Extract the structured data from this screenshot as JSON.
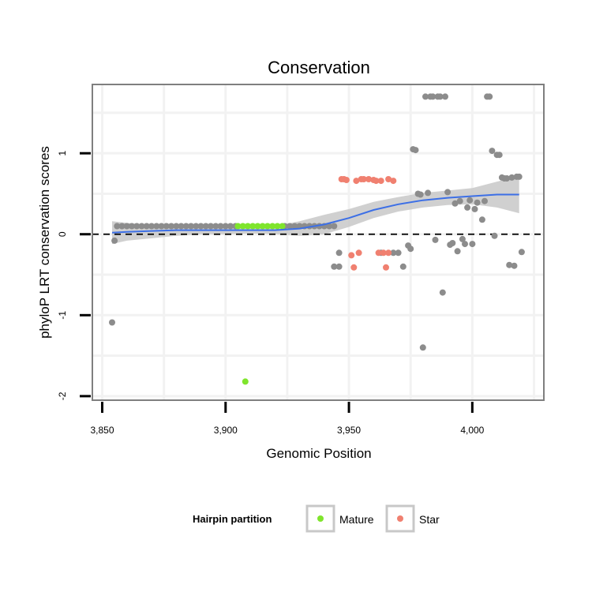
{
  "chart_data": {
    "type": "scatter",
    "title": "Conservation",
    "xlabel": "Genomic Position",
    "ylabel": "phyloP LRT conservation scores",
    "xlim": [
      3846,
      4029
    ],
    "ylim": [
      -2.05,
      1.85
    ],
    "x_ticks": [
      3850,
      3900,
      3950,
      4000
    ],
    "x_tick_labels": [
      "3,850",
      "3,900",
      "3,950",
      "4,000"
    ],
    "y_ticks": [
      -2,
      -1,
      0,
      1
    ],
    "y_tick_labels": [
      "-2",
      "-1",
      "0",
      "1"
    ],
    "reference_line": {
      "y": 0,
      "style": "dashed"
    },
    "legend": {
      "title": "Hairpin partition",
      "placement": "bottom",
      "entries": [
        {
          "label": "Mature",
          "color": "#7fe52c"
        },
        {
          "label": "Star",
          "color": "#f08070"
        }
      ]
    },
    "colors": {
      "other": "#8c8c8c",
      "mature": "#7fe52c",
      "star": "#f08070",
      "smooth_line": "#3c6fe6",
      "ribbon": "#c8c8c8",
      "panel_border": "#7f7f7f",
      "grid": "#f2f2f2"
    },
    "series": [
      {
        "name": "Other",
        "points": [
          [
            3854,
            -1.09
          ],
          [
            3855,
            -0.08
          ],
          [
            3856,
            0.1
          ],
          [
            3858,
            0.1
          ],
          [
            3860,
            0.1
          ],
          [
            3862,
            0.1
          ],
          [
            3864,
            0.1
          ],
          [
            3866,
            0.1
          ],
          [
            3868,
            0.1
          ],
          [
            3870,
            0.1
          ],
          [
            3872,
            0.1
          ],
          [
            3874,
            0.1
          ],
          [
            3876,
            0.1
          ],
          [
            3878,
            0.1
          ],
          [
            3880,
            0.1
          ],
          [
            3882,
            0.1
          ],
          [
            3884,
            0.1
          ],
          [
            3886,
            0.1
          ],
          [
            3888,
            0.1
          ],
          [
            3890,
            0.1
          ],
          [
            3892,
            0.1
          ],
          [
            3894,
            0.1
          ],
          [
            3896,
            0.1
          ],
          [
            3898,
            0.1
          ],
          [
            3900,
            0.1
          ],
          [
            3902,
            0.1
          ],
          [
            3904,
            0.1
          ],
          [
            3924,
            0.1
          ],
          [
            3926,
            0.1
          ],
          [
            3928,
            0.1
          ],
          [
            3930,
            0.1
          ],
          [
            3932,
            0.1
          ],
          [
            3934,
            0.1
          ],
          [
            3936,
            0.1
          ],
          [
            3938,
            0.1
          ],
          [
            3940,
            0.1
          ],
          [
            3942,
            0.1
          ],
          [
            3944,
            0.1
          ],
          [
            3944,
            -0.4
          ],
          [
            3946,
            -0.4
          ],
          [
            3946,
            -0.23
          ],
          [
            3963,
            -0.23
          ],
          [
            3968,
            -0.23
          ],
          [
            3970,
            -0.23
          ],
          [
            3972,
            -0.4
          ],
          [
            3974,
            -0.14
          ],
          [
            3975,
            -0.18
          ],
          [
            3976,
            1.05
          ],
          [
            3977,
            1.04
          ],
          [
            3978,
            0.5
          ],
          [
            3979,
            0.49
          ],
          [
            3980,
            -1.4
          ],
          [
            3981,
            1.7
          ],
          [
            3982,
            0.51
          ],
          [
            3983,
            1.7
          ],
          [
            3984,
            1.7
          ],
          [
            3985,
            -0.07
          ],
          [
            3986,
            1.7
          ],
          [
            3987,
            1.7
          ],
          [
            3988,
            -0.72
          ],
          [
            3989,
            1.7
          ],
          [
            3990,
            0.52
          ],
          [
            3991,
            -0.13
          ],
          [
            3992,
            -0.11
          ],
          [
            3993,
            0.38
          ],
          [
            3994,
            -0.21
          ],
          [
            3995,
            0.41
          ],
          [
            3996,
            -0.06
          ],
          [
            3997,
            -0.12
          ],
          [
            3998,
            0.33
          ],
          [
            3999,
            0.42
          ],
          [
            4000,
            -0.12
          ],
          [
            4001,
            0.31
          ],
          [
            4002,
            0.39
          ],
          [
            4004,
            0.18
          ],
          [
            4005,
            0.41
          ],
          [
            4006,
            1.7
          ],
          [
            4007,
            1.7
          ],
          [
            4008,
            1.03
          ],
          [
            4009,
            -0.02
          ],
          [
            4010,
            0.98
          ],
          [
            4011,
            0.98
          ],
          [
            4012,
            0.7
          ],
          [
            4013,
            0.69
          ],
          [
            4014,
            0.69
          ],
          [
            4015,
            -0.38
          ],
          [
            4016,
            0.7
          ],
          [
            4017,
            -0.39
          ],
          [
            4018,
            0.71
          ],
          [
            4019,
            0.71
          ],
          [
            4020,
            -0.22
          ]
        ]
      },
      {
        "name": "Mature",
        "points": [
          [
            3905,
            0.1
          ],
          [
            3907,
            0.1
          ],
          [
            3909,
            0.1
          ],
          [
            3911,
            0.1
          ],
          [
            3913,
            0.1
          ],
          [
            3915,
            0.1
          ],
          [
            3917,
            0.1
          ],
          [
            3919,
            0.1
          ],
          [
            3921,
            0.1
          ],
          [
            3923,
            0.1
          ],
          [
            3908,
            -1.82
          ]
        ]
      },
      {
        "name": "Star",
        "points": [
          [
            3947,
            0.68
          ],
          [
            3948,
            0.68
          ],
          [
            3949,
            0.67
          ],
          [
            3953,
            0.66
          ],
          [
            3955,
            0.68
          ],
          [
            3956,
            0.68
          ],
          [
            3958,
            0.68
          ],
          [
            3960,
            0.67
          ],
          [
            3961,
            0.66
          ],
          [
            3963,
            0.66
          ],
          [
            3966,
            0.68
          ],
          [
            3968,
            0.66
          ],
          [
            3951,
            -0.26
          ],
          [
            3954,
            -0.23
          ],
          [
            3952,
            -0.41
          ],
          [
            3962,
            -0.23
          ],
          [
            3964,
            -0.23
          ],
          [
            3966,
            -0.23
          ],
          [
            3965,
            -0.41
          ]
        ]
      }
    ],
    "smooth": {
      "x": [
        3854,
        3860,
        3870,
        3880,
        3890,
        3900,
        3910,
        3920,
        3930,
        3940,
        3950,
        3960,
        3970,
        3980,
        3990,
        4000,
        4010,
        4019
      ],
      "y": [
        0.02,
        0.03,
        0.04,
        0.05,
        0.05,
        0.05,
        0.05,
        0.05,
        0.07,
        0.12,
        0.2,
        0.3,
        0.37,
        0.42,
        0.45,
        0.47,
        0.49,
        0.49
      ],
      "lo": [
        -0.12,
        -0.08,
        -0.05,
        -0.02,
        0.0,
        0.0,
        0.01,
        0.0,
        -0.02,
        0.0,
        0.09,
        0.2,
        0.28,
        0.33,
        0.36,
        0.37,
        0.33,
        0.26
      ],
      "hi": [
        0.16,
        0.14,
        0.11,
        0.1,
        0.1,
        0.1,
        0.1,
        0.1,
        0.16,
        0.24,
        0.31,
        0.4,
        0.46,
        0.51,
        0.54,
        0.57,
        0.65,
        0.72
      ]
    }
  }
}
